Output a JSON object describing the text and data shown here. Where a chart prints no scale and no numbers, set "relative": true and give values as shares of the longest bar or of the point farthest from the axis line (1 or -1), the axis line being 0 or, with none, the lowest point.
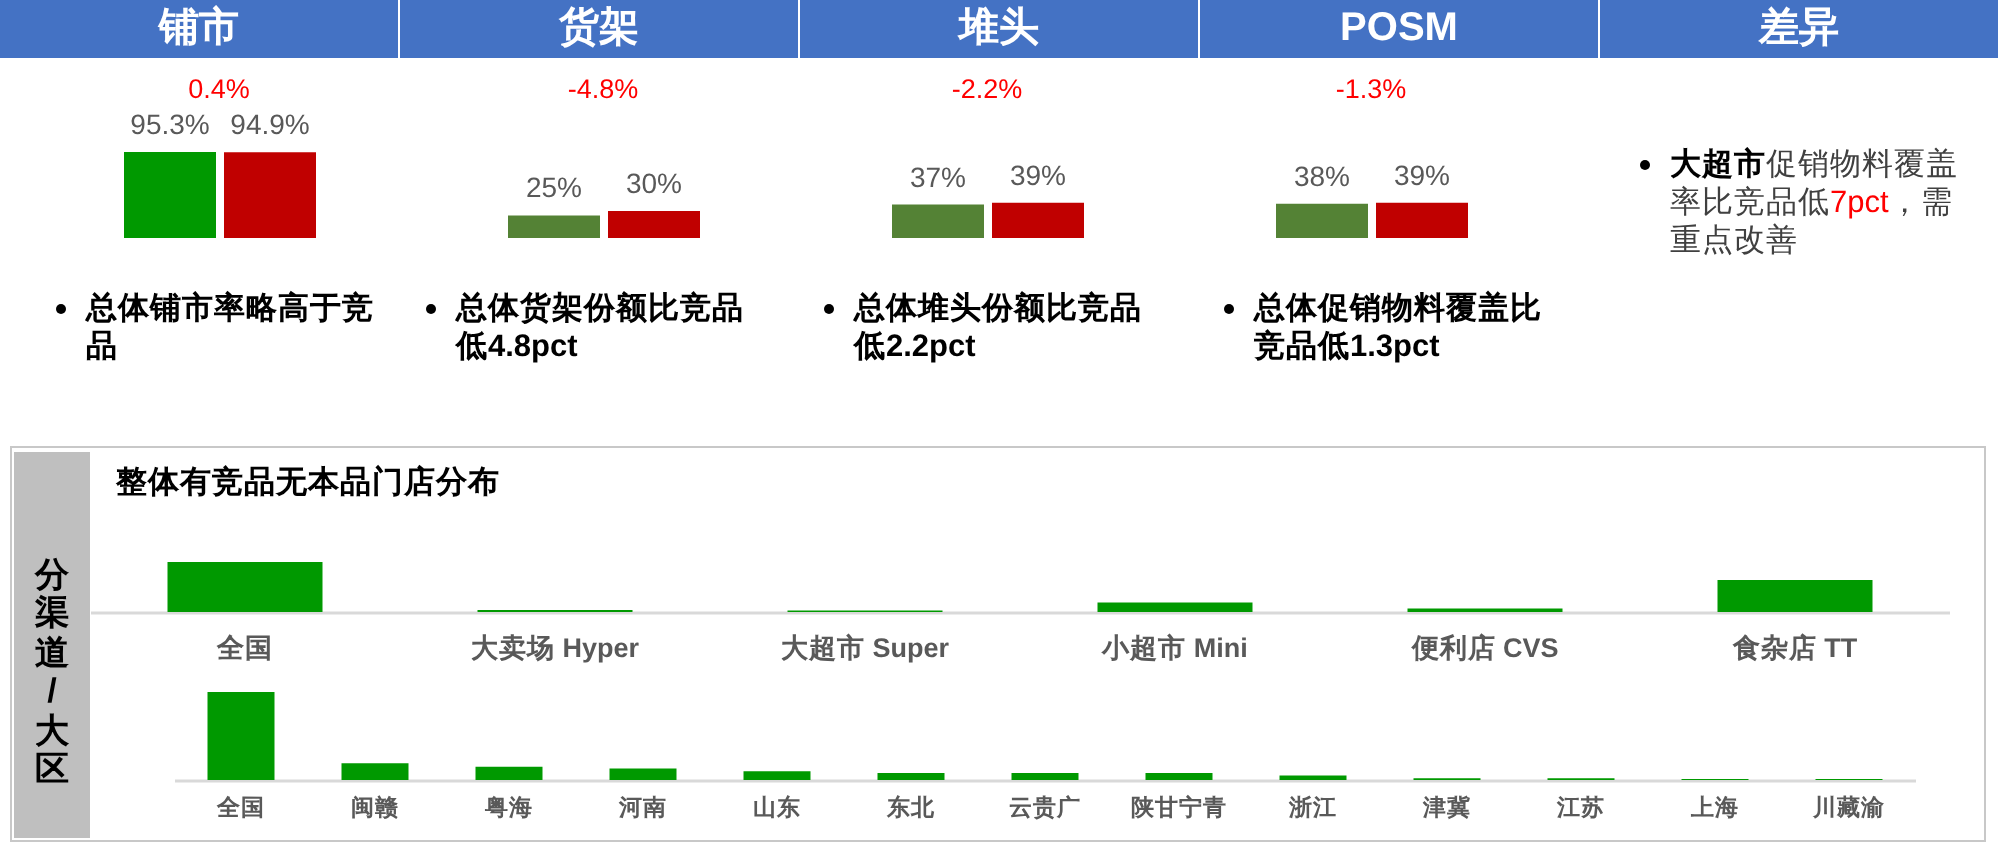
{
  "chart_data": [
    {
      "type": "bar",
      "title": "铺市",
      "categories": [
        null,
        null
      ],
      "values": [
        95.3,
        94.9
      ],
      "colors": [
        "#009900",
        "#c00000"
      ],
      "value_labels": [
        "95.3%",
        "94.9%"
      ],
      "annotations": [
        "0.4%",
        "总体铺市率略高于竞品"
      ]
    },
    {
      "type": "bar",
      "title": "货架",
      "categories": [
        null,
        null
      ],
      "values": [
        25,
        30
      ],
      "colors": [
        "#548235",
        "#c00000"
      ],
      "value_labels": [
        "25%",
        "30%"
      ],
      "annotations": [
        "-4.8%",
        "总体货架份额比竞品低4.8pct"
      ]
    },
    {
      "type": "bar",
      "title": "堆头",
      "categories": [
        null,
        null
      ],
      "values": [
        37,
        39
      ],
      "colors": [
        "#548235",
        "#c00000"
      ],
      "value_labels": [
        "37%",
        "39%"
      ],
      "annotations": [
        "-2.2%",
        "总体堆头份额比竞品低2.2pct"
      ]
    },
    {
      "type": "bar",
      "title": "POSM",
      "categories": [
        null,
        null
      ],
      "values": [
        38,
        39
      ],
      "colors": [
        "#548235",
        "#c00000"
      ],
      "value_labels": [
        "38%",
        "39%"
      ],
      "annotations": [
        "-1.3%",
        "总体促销物料覆盖比竞品低1.3pct"
      ]
    },
    {
      "type": "other",
      "title": "差异",
      "annotations": [
        "大超市",
        "促销物料覆盖率比竞品低",
        "7pct",
        "，需重点改善"
      ]
    },
    {
      "type": "bar",
      "title": "整体有竞品无本品门店分布",
      "ylabel": "分渠道/大区",
      "relative": true,
      "categories": [
        "全国",
        "大卖场 Hyper",
        "大超市 Super",
        "小超市 Mini",
        "便利店 CVS",
        "食杂店 TT"
      ],
      "values": [
        1,
        0.04,
        0.03,
        0.19,
        0.07,
        0.64
      ],
      "color": "#009900"
    },
    {
      "type": "bar",
      "relative": true,
      "categories": [
        "全国",
        "闽赣",
        "粤海",
        "河南",
        "山东",
        "东北",
        "云贵广",
        "陕甘宁青",
        "浙江",
        "津冀",
        "江苏",
        "上海",
        "川藏渝"
      ],
      "values": [
        1,
        0.19,
        0.15,
        0.13,
        0.1,
        0.08,
        0.08,
        0.08,
        0.05,
        0.02,
        0.02,
        0.01,
        0.01
      ],
      "color": "#009900"
    }
  ]
}
